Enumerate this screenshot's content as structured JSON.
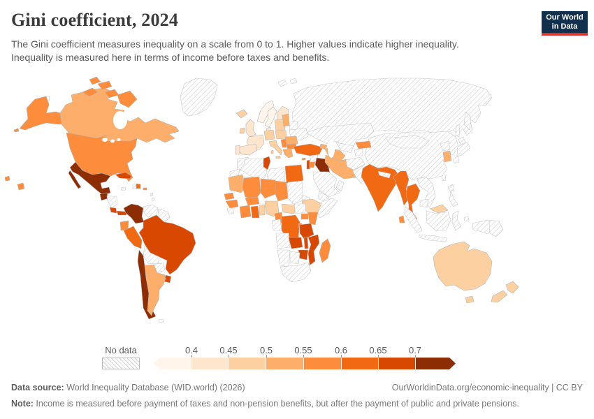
{
  "header": {
    "title": "Gini coefficient, 2024",
    "subtitle_line1": "The Gini coefficient measures inequality on a scale from 0 to 1. Higher values indicate higher inequality.",
    "subtitle_line2": "Inequality is measured here in terms of income before taxes and benefits."
  },
  "logo": {
    "line1": "Our World",
    "line2": "in Data",
    "bg_color": "#132f4e",
    "accent_color": "#d13832"
  },
  "legend": {
    "no_data_label": "No data",
    "tick_labels": [
      "0.4",
      "0.45",
      "0.5",
      "0.55",
      "0.6",
      "0.65",
      "0.7"
    ]
  },
  "footer": {
    "source_label": "Data source:",
    "source_value": " World Inequality Database (WID.world) (2026)",
    "attribution": "OurWorldinData.org/economic-inequality | CC BY",
    "note_label": "Note:",
    "note_value": " Income is measured before payment of taxes and non-pension benefits, but after the payment of public and private pensions."
  },
  "chart_data": {
    "type": "choropleth",
    "title": "Gini coefficient, 2024",
    "metric": "Gini coefficient (income before taxes and benefits)",
    "year": "2024",
    "bins": [
      "<0.4",
      "0.4–0.45",
      "0.45–0.5",
      "0.5–0.55",
      "0.55–0.6",
      "0.6–0.65",
      "0.65–0.7",
      ">0.7"
    ],
    "bin_colors": [
      "#fff5eb",
      "#fee6ce",
      "#fdd0a2",
      "#fdae6b",
      "#fd8d3c",
      "#f16913",
      "#d94801",
      "#8c2d04"
    ],
    "no_data_style": "hatched",
    "countries": {
      "united-states": 4,
      "canada": 3,
      "canada-arctic-islands": 4,
      "greenland": "no_data",
      "mexico": 7,
      "guatemala": 7,
      "honduras-nicaragua": "no_data",
      "costa-rica": 6,
      "panama": 6,
      "cuba": 6,
      "jamaica": "no_data",
      "haiti": "no_data",
      "dominican-republic": 5,
      "puerto-rico": 4,
      "lesser-antilles": "no_data",
      "falkland-islands": "no_data",
      "colombia": 7,
      "venezuela": "no_data",
      "guianas": "no_data",
      "ecuador": 4,
      "peru": 5,
      "brazil": 6,
      "bolivia": "no_data",
      "paraguay": "no_data",
      "chile": 7,
      "argentina": 3,
      "uruguay": 6,
      "iceland": 2,
      "norway": 0,
      "sweden": 0,
      "finland": 1,
      "denmark": 1,
      "united-kingdom": 1,
      "ireland": 2,
      "germany": 2,
      "france": 1,
      "spain": 1,
      "portugal": 1,
      "italy": 2,
      "poland": 2,
      "central-europe": 2,
      "baltic-states": 3,
      "belarus": "no_data",
      "ukraine": "no_data",
      "romania": 3,
      "serbia": 4,
      "bulgaria": 4,
      "greece": 3,
      "svalbard": "no_data",
      "morocco": "no_data",
      "western-sahara": "no_data",
      "algeria": "no_data",
      "tunisia": 6,
      "libya": "no_data",
      "egypt": 5,
      "mauritania": 3,
      "mali": 4,
      "niger": 4,
      "chad": 4,
      "sudan": "no_data",
      "eritrea": "no_data",
      "ethiopia": 2,
      "somalia": "no_data",
      "senegal": 4,
      "guinea": 4,
      "sierra-leone": "no_data",
      "cote-divoire": 4,
      "ghana": 5,
      "burkina-faso": 4,
      "togo-benin": 2,
      "nigeria": 2,
      "cameroon": 4,
      "central-african-republic": 2,
      "south-sudan": "no_data",
      "uganda": 4,
      "kenya": 4,
      "gabon-congo": "no_data",
      "dr-congo": 5,
      "rwanda-burundi": 4,
      "tanzania": 6,
      "angola": "no_data",
      "zambia": 6,
      "malawi": 6,
      "mozambique": 6,
      "zimbabwe": 6,
      "namibia": "no_data",
      "botswana": "no_data",
      "south-africa": "no_data",
      "madagascar": 4,
      "turkey": 5,
      "cyprus": 4,
      "syria": "no_data",
      "israel-lebanon": 6,
      "jordan": 4,
      "iraq": 7,
      "saudi-arabia": "no_data",
      "yemen": "no_data",
      "oman": "no_data",
      "iran": 3,
      "azerbaijan": 3,
      "russia": "no_data",
      "kazakhstan": "no_data",
      "uzbekistan": "no_data",
      "turkmenistan": 3,
      "kyrgyzstan": 4,
      "tajikistan": "no_data",
      "afghanistan": "no_data",
      "pakistan": "no_data",
      "india": 5,
      "nepal": "no_data",
      "myanmar": 5,
      "thailand": 5,
      "laos-vietnam": "no_data",
      "cambodia": "no_data",
      "malaysia": 2,
      "sri-lanka": 4,
      "china": "no_data",
      "mongolia": "no_data",
      "north-korea": "no_data",
      "south-korea": 3,
      "japan": "no_data",
      "taiwan": "no_data",
      "philippines": "no_data",
      "indonesia": "no_data",
      "papua-new-guinea": "no_data",
      "australia": 2,
      "new-zealand": 2
    }
  }
}
